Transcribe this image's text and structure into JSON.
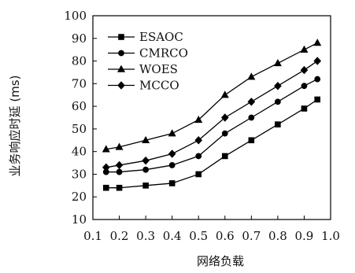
{
  "chart_data": {
    "type": "line",
    "xlabel": "网络负载",
    "ylabel": "业务响应时延 (ms)",
    "xlim": [
      0.1,
      1.0
    ],
    "ylim": [
      10,
      100
    ],
    "x_ticks": [
      "0.1",
      "0.2",
      "0.3",
      "0.4",
      "0.5",
      "0.6",
      "0.7",
      "0.8",
      "0.9",
      "1.0"
    ],
    "y_ticks": [
      "10",
      "20",
      "30",
      "40",
      "50",
      "60",
      "70",
      "80",
      "90",
      "100"
    ],
    "x": [
      0.15,
      0.2,
      0.3,
      0.4,
      0.5,
      0.6,
      0.7,
      0.8,
      0.9,
      0.95
    ],
    "grid": false,
    "legend_position": "top-left",
    "series": [
      {
        "name": "ESAOC",
        "marker": "square",
        "values": [
          24,
          24,
          25,
          26,
          30,
          38,
          45,
          52,
          59,
          63
        ]
      },
      {
        "name": "CMRCO",
        "marker": "circle",
        "values": [
          31,
          31,
          32,
          34,
          38,
          48,
          55,
          62,
          69,
          72
        ]
      },
      {
        "name": "WOES",
        "marker": "triangle",
        "values": [
          41,
          42,
          45,
          48,
          54,
          65,
          73,
          79,
          85,
          88
        ]
      },
      {
        "name": "MCCO",
        "marker": "diamond",
        "values": [
          33,
          34,
          36,
          39,
          45,
          55,
          62,
          69,
          76,
          80
        ]
      }
    ]
  }
}
